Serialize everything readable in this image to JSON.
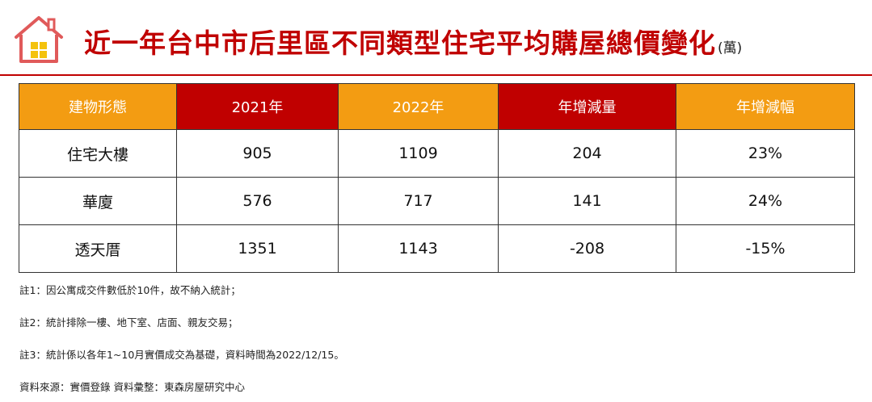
{
  "title": "近一年台中市后里區不同類型住宅平均購屋總價變化",
  "unit": "(萬)",
  "colors": {
    "accent_red": "#c00000",
    "header_orange": "#f39c12",
    "negative_green": "#1a9a3a"
  },
  "table": {
    "headers": [
      "建物形態",
      "2021年",
      "2022年",
      "年增減量",
      "年增減幅"
    ],
    "rows": [
      [
        "住宅大樓",
        "905",
        "1109",
        "204",
        "23%"
      ],
      [
        "華廈",
        "576",
        "717",
        "141",
        "24%"
      ],
      [
        "透天厝",
        "1351",
        "1143",
        "-208",
        "-15%"
      ]
    ]
  },
  "notes": [
    "註1：因公寓成交件數低於10件，故不納入統計；",
    "註2：統計排除一樓、地下室、店面、親友交易；",
    "註3：統計係以各年1~10月實價成交為基礎，資料時間為2022/12/15。",
    "資料來源：實價登錄 資料彙整：東森房屋研究中心"
  ],
  "chart_data": {
    "type": "table",
    "title": "近一年台中市后里區不同類型住宅平均購屋總價變化",
    "unit": "萬",
    "columns": [
      "建物形態",
      "2021年",
      "2022年",
      "年增減量",
      "年增減幅"
    ],
    "rows": [
      {
        "建物形態": "住宅大樓",
        "2021年": 905,
        "2022年": 1109,
        "年增減量": 204,
        "年增減幅": "23%"
      },
      {
        "建物形態": "華廈",
        "2021年": 576,
        "2022年": 717,
        "年增減量": 141,
        "年增減幅": "24%"
      },
      {
        "建物形態": "透天厝",
        "2021年": 1351,
        "2022年": 1143,
        "年增減量": -208,
        "年增減幅": "-15%"
      }
    ]
  }
}
